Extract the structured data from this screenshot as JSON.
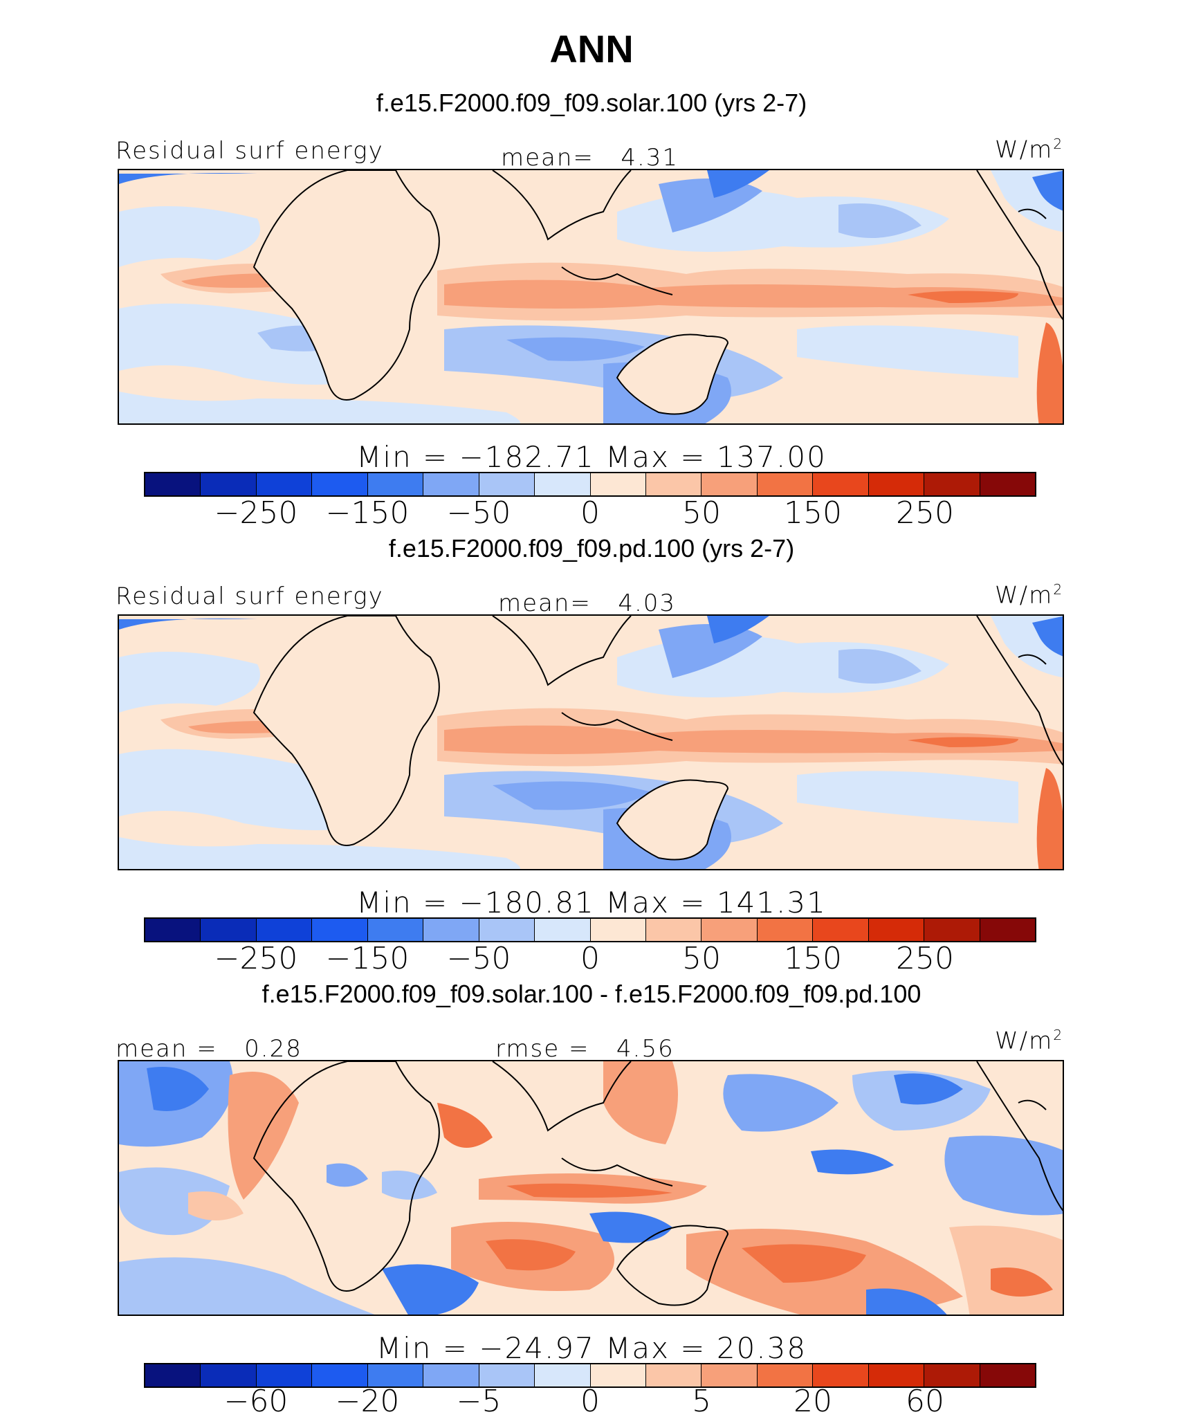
{
  "figure_title": "ANN",
  "units": "W/m",
  "units_sup": "2",
  "colors": [
    "#08127e",
    "#0a2cb8",
    "#0f41d8",
    "#1d5bf0",
    "#3e7cf0",
    "#7fa7f5",
    "#a9c5f7",
    "#d7e7fb",
    "#fde7d4",
    "#fbc6a8",
    "#f7a07a",
    "#f27344",
    "#e8471d",
    "#d52b08",
    "#ad1a06",
    "#860808"
  ],
  "chart_data": [
    {
      "type": "heatmap",
      "case_title": "f.e15.F2000.f09_f09.solar.100 (yrs 2-7)",
      "variable": "Residual surf energy",
      "mean_label": "mean=",
      "mean": "4.31",
      "min_label": "Min",
      "min": "−182.71",
      "max_label": "Max",
      "max": "137.00",
      "colorbar_ticks": [
        "−250",
        "−150",
        "−50",
        "0",
        "50",
        "150",
        "250"
      ]
    },
    {
      "type": "heatmap",
      "case_title": "f.e15.F2000.f09_f09.pd.100 (yrs 2-7)",
      "variable": "Residual surf energy",
      "mean_label": "mean=",
      "mean": "4.03",
      "min_label": "Min",
      "min": "−180.81",
      "max_label": "Max",
      "max": "141.31",
      "colorbar_ticks": [
        "−250",
        "−150",
        "−50",
        "0",
        "50",
        "150",
        "250"
      ]
    },
    {
      "type": "heatmap",
      "case_title": "f.e15.F2000.f09_f09.solar.100 - f.e15.F2000.f09_f09.pd.100",
      "mean_label": "mean =",
      "mean": "0.28",
      "rmse_label": "rmse =",
      "rmse": "4.56",
      "min_label": "Min",
      "min": "−24.97",
      "max_label": "Max",
      "max": "20.38",
      "colorbar_ticks": [
        "−60",
        "−20",
        "−5",
        "0",
        "5",
        "20",
        "60"
      ]
    }
  ]
}
